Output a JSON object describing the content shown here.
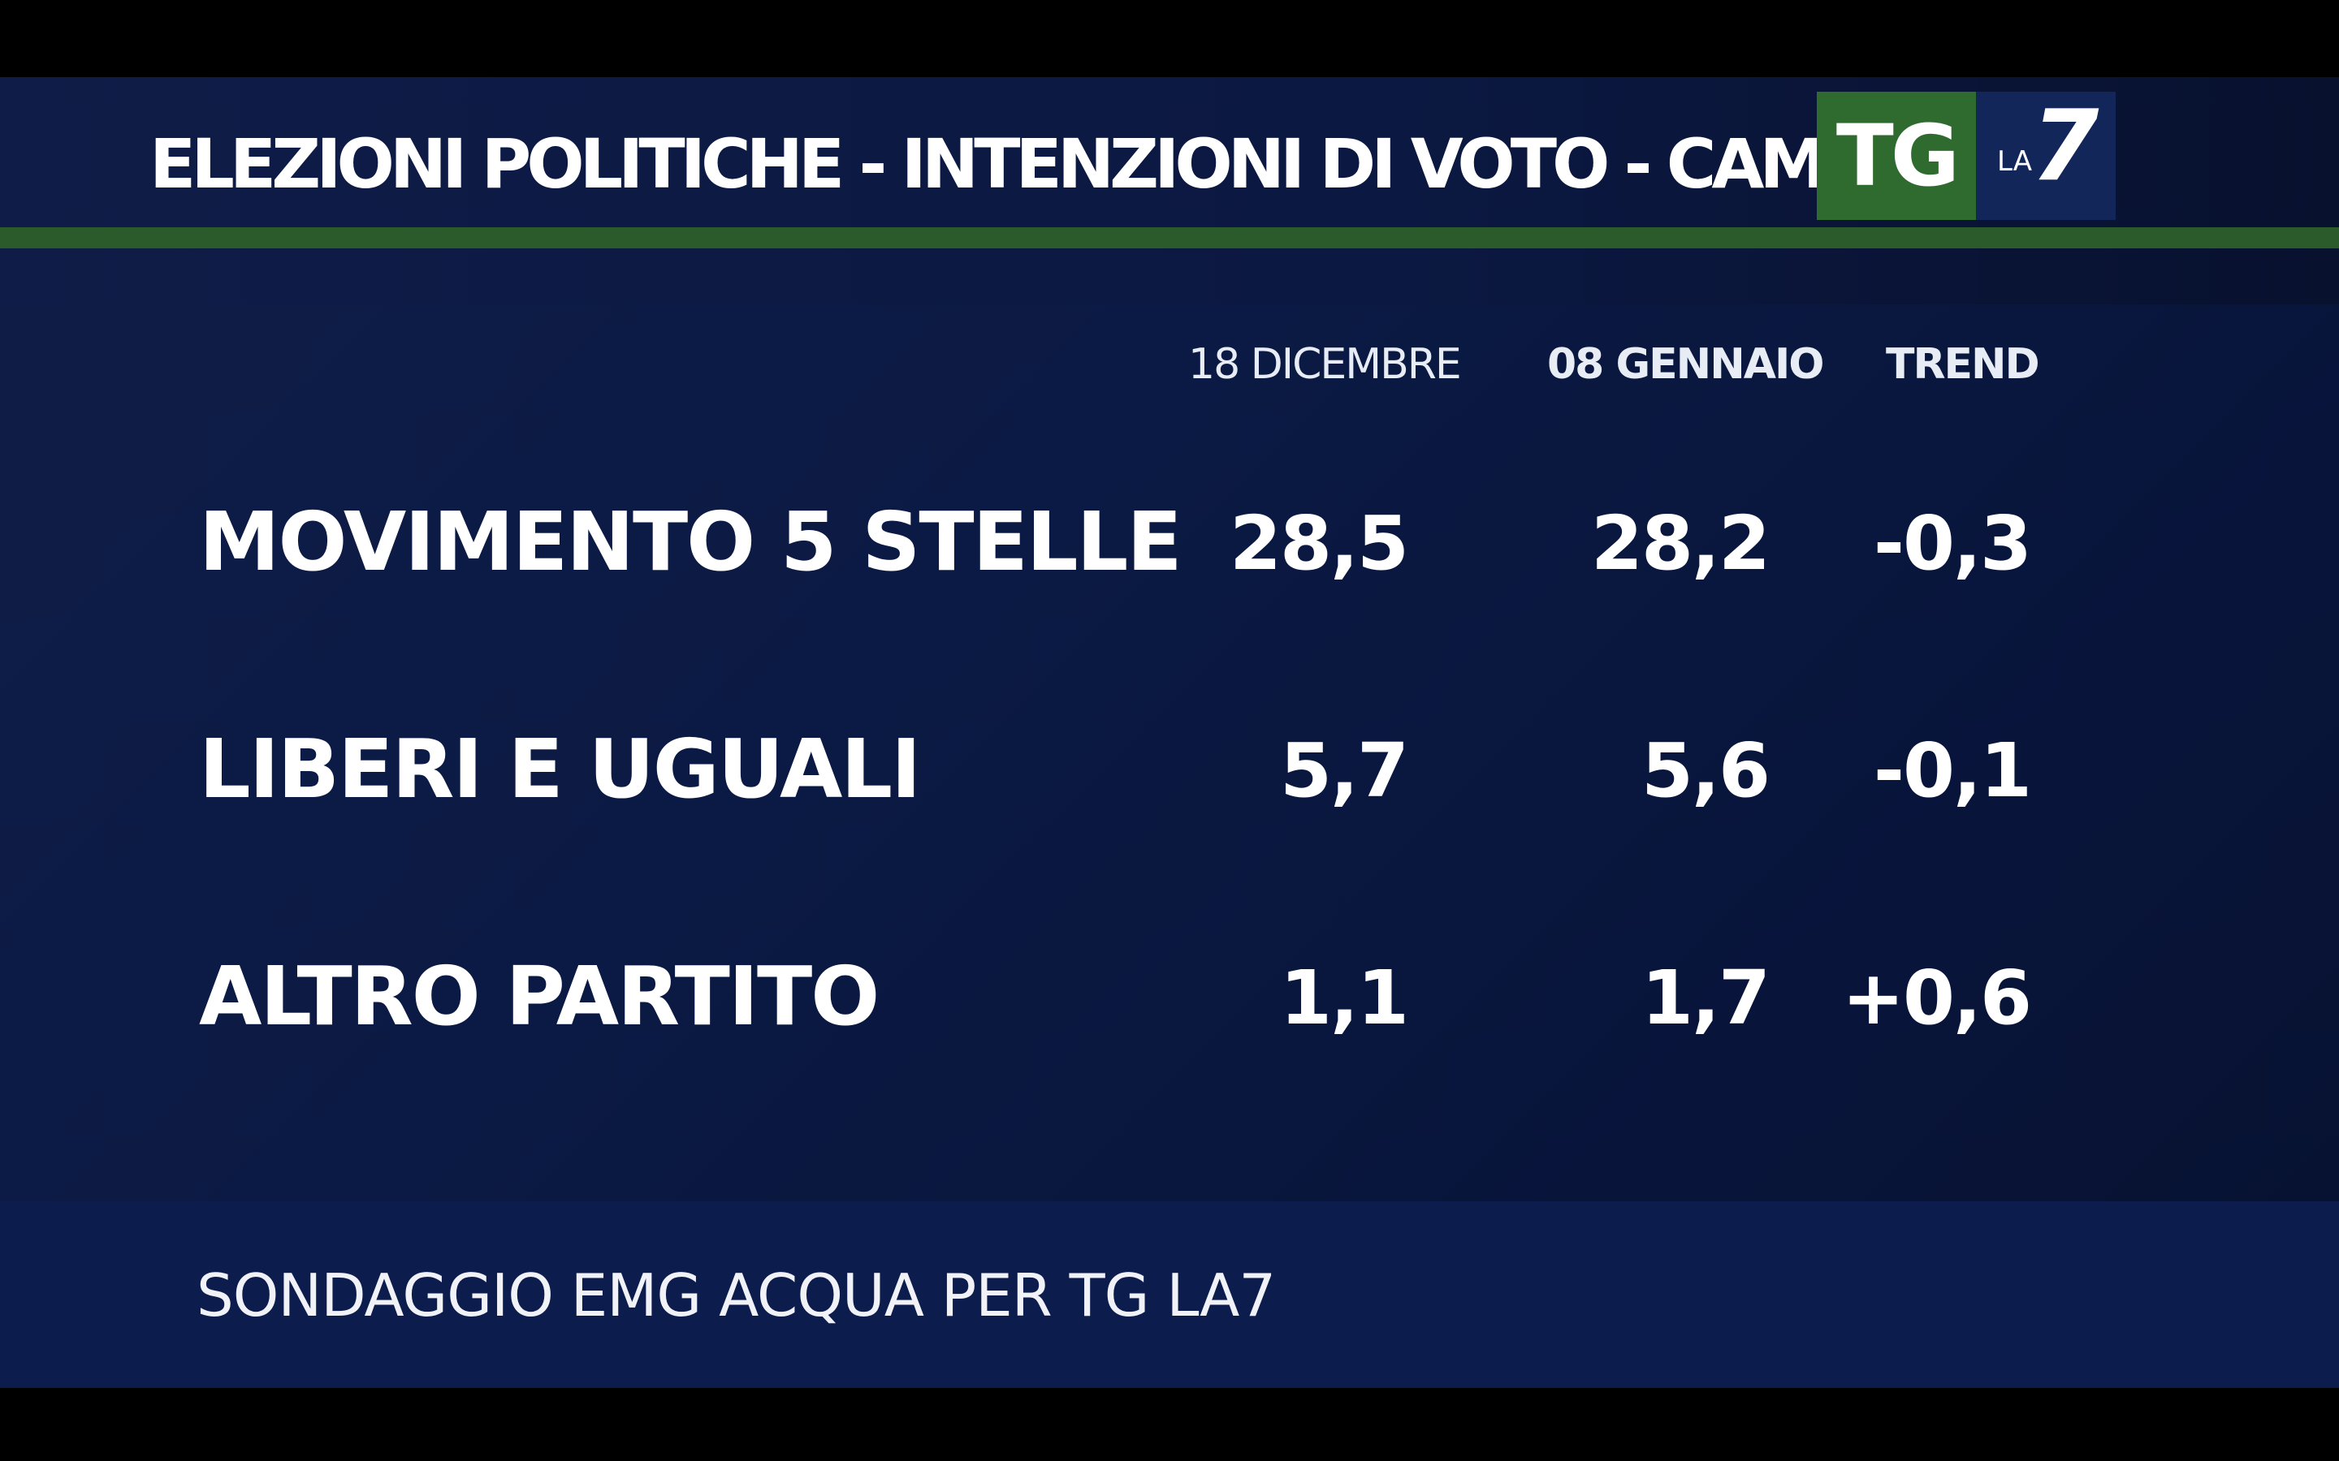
{
  "header": {
    "title": "ELEZIONI POLITICHE - INTENZIONI DI VOTO - CAMERA"
  },
  "logo": {
    "tg": "TG",
    "la": "LA",
    "seven": "7"
  },
  "footer": {
    "source": "SONDAGGIO EMG ACQUA PER TG LA7"
  },
  "colors": {
    "background": "#0b1a44",
    "accent_green": "#2c5b2b",
    "logo_green": "#2f6b2e",
    "logo_blue": "#13265a",
    "text": "#ffffff"
  },
  "chart_data": {
    "type": "table",
    "title": "ELEZIONI POLITICHE - INTENZIONI DI VOTO - CAMERA",
    "columns": [
      "18 DICEMBRE",
      "08 GENNAIO",
      "TREND"
    ],
    "rows": [
      {
        "party": "MOVIMENTO 5 STELLE",
        "values": [
          "28,5",
          "28,2",
          "-0,3"
        ]
      },
      {
        "party": "LIBERI E UGUALI",
        "values": [
          "5,7",
          "5,6",
          "-0,1"
        ]
      },
      {
        "party": "ALTRO PARTITO",
        "values": [
          "1,1",
          "1,7",
          "+0,6"
        ]
      }
    ]
  }
}
